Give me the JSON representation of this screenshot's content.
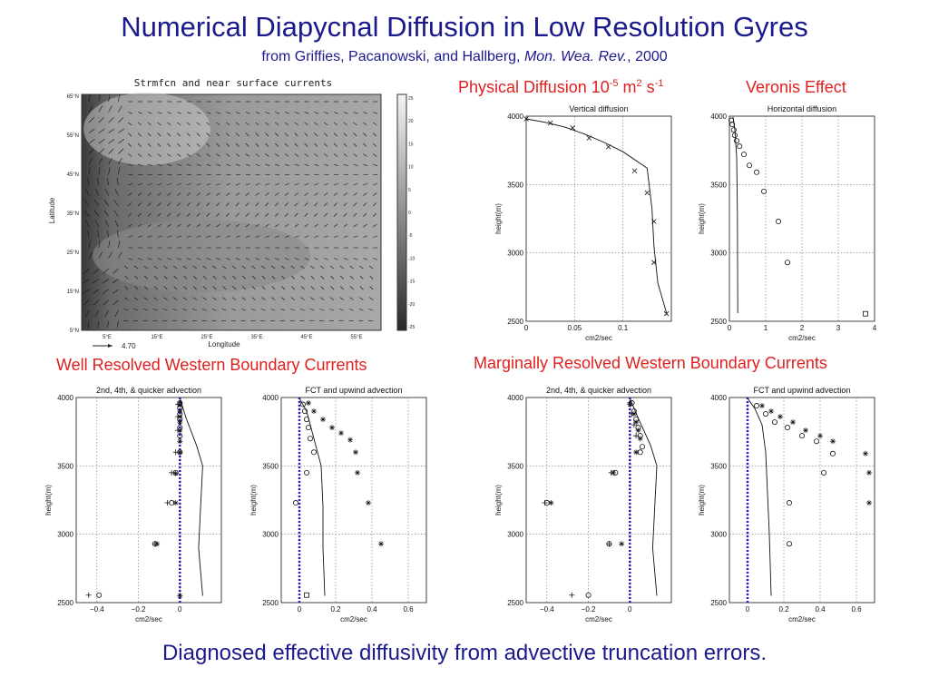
{
  "header": {
    "title": "Numerical Diapycnal Diffusion in Low Resolution Gyres",
    "subtitle_authors": "from Griffies, Pacanowski, and Hallberg, ",
    "subtitle_journal": "Mon. Wea. Rev.",
    "subtitle_year": ", 2000"
  },
  "labels": {
    "physical_diffusion_prefix": "Physical Diffusion 10",
    "physical_diffusion_exp1": "-5",
    "physical_diffusion_mid": " m",
    "physical_diffusion_exp2": "2",
    "physical_diffusion_s": " s",
    "physical_diffusion_exp3": "-1",
    "veronis_effect": "Veronis Effect",
    "well_resolved": "Well Resolved Western Boundary Currents",
    "marginally_resolved": "Marginally Resolved Western Boundary Currents"
  },
  "footer": {
    "text": "Diagnosed effective diffusivity from advective truncation errors."
  },
  "map": {
    "title": "Strmfcn and near surface currents",
    "xlabel": "Longitude",
    "ylabel": "Latitude",
    "lat_ticks": [
      "65°N",
      "55°N",
      "45°N",
      "35°N",
      "25°N",
      "15°N",
      "5°N"
    ],
    "lon_ticks": [
      "5°E",
      "15°E",
      "25°E",
      "35°E",
      "45°E",
      "55°E"
    ],
    "colorbar_ticks": [
      "25",
      "20",
      "15",
      "10",
      "5",
      "0",
      "-5",
      "-10",
      "-15",
      "-20",
      "-25"
    ],
    "reference_vector_label": "4.70"
  },
  "chart_data": [
    {
      "id": "vertical",
      "type": "scatter",
      "title": "Vertical diffusion",
      "xlabel": "cm2/sec",
      "ylabel": "height(m)",
      "xlim": [
        0,
        0.15
      ],
      "ylim": [
        2500,
        4000
      ],
      "xticks": [
        {
          "v": 0,
          "l": "0"
        },
        {
          "v": 0.05,
          "l": "0.05"
        },
        {
          "v": 0.1,
          "l": "0.1"
        }
      ],
      "yticks": [
        2500,
        3000,
        3500,
        4000
      ],
      "line": [
        [
          0,
          3980
        ],
        [
          0.02,
          3955
        ],
        [
          0.04,
          3920
        ],
        [
          0.06,
          3870
        ],
        [
          0.08,
          3810
        ],
        [
          0.1,
          3740
        ],
        [
          0.125,
          3620
        ],
        [
          0.127,
          3500
        ],
        [
          0.13,
          3320
        ],
        [
          0.132,
          3050
        ],
        [
          0.136,
          2780
        ],
        [
          0.145,
          2560
        ]
      ],
      "markers": [
        {
          "sym": "x",
          "pts": [
            [
              0,
              3980
            ],
            [
              0.025,
              3950
            ],
            [
              0.048,
              3915
            ],
            [
              0.065,
              3840
            ],
            [
              0.085,
              3775
            ],
            [
              0.112,
              3600
            ],
            [
              0.125,
              3440
            ],
            [
              0.132,
              3230
            ],
            [
              0.132,
              2930
            ],
            [
              0.145,
              2555
            ]
          ]
        }
      ]
    },
    {
      "id": "horizontal",
      "type": "scatter",
      "title": "Horizontal diffusion",
      "xlabel": "cm2/sec",
      "ylabel": "height(m)",
      "xlim": [
        0,
        4
      ],
      "ylim": [
        2500,
        4000
      ],
      "xticks": [
        {
          "v": 0,
          "l": "0"
        },
        {
          "v": 1,
          "l": "1"
        },
        {
          "v": 2,
          "l": "2"
        },
        {
          "v": 3,
          "l": "3"
        },
        {
          "v": 4,
          "l": "4"
        }
      ],
      "yticks": [
        2500,
        3000,
        3500,
        4000
      ],
      "line": [
        [
          0.1,
          3995
        ],
        [
          0.15,
          3900
        ],
        [
          0.2,
          3700
        ],
        [
          0.22,
          3300
        ],
        [
          0.23,
          2560
        ]
      ],
      "markers": [
        {
          "sym": "o",
          "pts": [
            [
              0.05,
              3970
            ],
            [
              0.08,
              3940
            ],
            [
              0.12,
              3900
            ],
            [
              0.15,
              3860
            ],
            [
              0.2,
              3820
            ],
            [
              0.28,
              3780
            ],
            [
              0.4,
              3720
            ],
            [
              0.55,
              3640
            ],
            [
              0.75,
              3590
            ],
            [
              0.95,
              3450
            ],
            [
              1.35,
              3230
            ],
            [
              1.6,
              2930
            ]
          ]
        },
        {
          "sym": "s",
          "pts": [
            [
              3.75,
              2555
            ]
          ]
        }
      ]
    },
    {
      "id": "well_centered",
      "type": "scatter",
      "title": "2nd, 4th, & quicker advection",
      "xlabel": "cm2/sec",
      "ylabel": "height(m)",
      "xlim": [
        -0.5,
        0.2
      ],
      "ylim": [
        2500,
        4000
      ],
      "xticks": [
        {
          "v": -0.4,
          "l": "−0.4"
        },
        {
          "v": -0.2,
          "l": "−0.2"
        },
        {
          "v": 0,
          "l": "0"
        }
      ],
      "yticks": [
        2500,
        3000,
        3500,
        4000
      ],
      "vline": 0,
      "line": [
        [
          0,
          3995
        ],
        [
          0.03,
          3850
        ],
        [
          0.08,
          3650
        ],
        [
          0.11,
          3500
        ],
        [
          0.1,
          3200
        ],
        [
          0.09,
          2900
        ],
        [
          0.11,
          2550
        ]
      ],
      "markers": [
        {
          "sym": "o",
          "pts": [
            [
              0,
              3960
            ],
            [
              0,
              3920
            ],
            [
              0,
              3880
            ],
            [
              0,
              3840
            ],
            [
              0,
              3780
            ],
            [
              0,
              3720
            ],
            [
              0,
              3600
            ],
            [
              -0.02,
              3450
            ],
            [
              -0.04,
              3230
            ],
            [
              -0.12,
              2930
            ],
            [
              -0.39,
              2555
            ]
          ]
        },
        {
          "sym": "*",
          "pts": [
            [
              0,
              3950
            ],
            [
              0,
              3900
            ],
            [
              0,
              3860
            ],
            [
              0,
              3820
            ],
            [
              0,
              3760
            ],
            [
              0,
              3680
            ],
            [
              0,
              3600
            ],
            [
              -0.02,
              3445
            ],
            [
              -0.02,
              3230
            ],
            [
              -0.11,
              2930
            ],
            [
              0,
              2550
            ]
          ]
        },
        {
          "sym": "+",
          "pts": [
            [
              -0.01,
              3950
            ],
            [
              -0.01,
              3860
            ],
            [
              -0.01,
              3760
            ],
            [
              -0.02,
              3600
            ],
            [
              -0.04,
              3450
            ],
            [
              -0.06,
              3230
            ],
            [
              -0.12,
              2930
            ],
            [
              -0.44,
              2555
            ]
          ]
        }
      ]
    },
    {
      "id": "well_fct",
      "type": "scatter",
      "title": "FCT and upwind advection",
      "xlabel": "cm2/sec",
      "ylabel": "height(m)",
      "xlim": [
        -0.1,
        0.7
      ],
      "ylim": [
        2500,
        4000
      ],
      "xticks": [
        {
          "v": 0,
          "l": "0"
        },
        {
          "v": 0.2,
          "l": "0.2"
        },
        {
          "v": 0.4,
          "l": "0.4"
        },
        {
          "v": 0.6,
          "l": "0.6"
        }
      ],
      "yticks": [
        2500,
        3000,
        3500,
        4000
      ],
      "vline": 0,
      "line": [
        [
          0,
          3995
        ],
        [
          0.04,
          3900
        ],
        [
          0.08,
          3700
        ],
        [
          0.12,
          3500
        ],
        [
          0.13,
          3200
        ],
        [
          0.13,
          2900
        ],
        [
          0.14,
          2550
        ]
      ],
      "markers": [
        {
          "sym": "o",
          "pts": [
            [
              0.02,
              3950
            ],
            [
              0.03,
              3900
            ],
            [
              0.04,
              3840
            ],
            [
              0.05,
              3780
            ],
            [
              0.06,
              3700
            ],
            [
              0.08,
              3600
            ],
            [
              0.04,
              3450
            ],
            [
              -0.02,
              3230
            ]
          ]
        },
        {
          "sym": "*",
          "pts": [
            [
              0.05,
              3960
            ],
            [
              0.08,
              3900
            ],
            [
              0.13,
              3840
            ],
            [
              0.18,
              3780
            ],
            [
              0.23,
              3740
            ],
            [
              0.28,
              3690
            ],
            [
              0.31,
              3600
            ],
            [
              0.32,
              3450
            ],
            [
              0.38,
              3230
            ],
            [
              0.45,
              2930
            ]
          ]
        },
        {
          "sym": "s",
          "pts": [
            [
              0.04,
              2555
            ]
          ]
        }
      ]
    },
    {
      "id": "marg_centered",
      "type": "scatter",
      "title": "2nd, 4th, & quicker advection",
      "xlabel": "cm2/sec",
      "ylabel": "height(m)",
      "xlim": [
        -0.5,
        0.2
      ],
      "ylim": [
        2500,
        4000
      ],
      "xticks": [
        {
          "v": -0.4,
          "l": "−0.4"
        },
        {
          "v": -0.2,
          "l": "−0.2"
        },
        {
          "v": 0,
          "l": "0"
        }
      ],
      "yticks": [
        2500,
        3000,
        3500,
        4000
      ],
      "vline": 0,
      "line": [
        [
          0,
          3995
        ],
        [
          0.04,
          3850
        ],
        [
          0.1,
          3650
        ],
        [
          0.13,
          3500
        ],
        [
          0.12,
          3200
        ],
        [
          0.11,
          2900
        ],
        [
          0.13,
          2550
        ]
      ],
      "markers": [
        {
          "sym": "o",
          "pts": [
            [
              0.01,
              3960
            ],
            [
              0.02,
              3900
            ],
            [
              0.03,
              3840
            ],
            [
              0.04,
              3780
            ],
            [
              0.05,
              3720
            ],
            [
              0.06,
              3640
            ],
            [
              0.05,
              3600
            ],
            [
              -0.07,
              3450
            ],
            [
              -0.4,
              3230
            ],
            [
              -0.1,
              2930
            ],
            [
              -0.2,
              2555
            ]
          ]
        },
        {
          "sym": "*",
          "pts": [
            [
              0,
              3950
            ],
            [
              0.02,
              3880
            ],
            [
              0.03,
              3820
            ],
            [
              0.04,
              3760
            ],
            [
              0.05,
              3700
            ],
            [
              0.03,
              3600
            ],
            [
              -0.08,
              3450
            ],
            [
              -0.38,
              3230
            ],
            [
              -0.04,
              2930
            ]
          ]
        },
        {
          "sym": "+",
          "pts": [
            [
              0,
              3960
            ],
            [
              0.01,
              3880
            ],
            [
              0.02,
              3800
            ],
            [
              0.03,
              3720
            ],
            [
              -0.09,
              3450
            ],
            [
              -0.41,
              3230
            ],
            [
              -0.1,
              2930
            ],
            [
              -0.28,
              2555
            ]
          ]
        }
      ]
    },
    {
      "id": "marg_fct",
      "type": "scatter",
      "title": "FCT and upwind advection",
      "xlabel": "cm2/sec",
      "ylabel": "height(m)",
      "xlim": [
        -0.1,
        0.7
      ],
      "ylim": [
        2500,
        4000
      ],
      "xticks": [
        {
          "v": 0,
          "l": "0"
        },
        {
          "v": 0.2,
          "l": "0.2"
        },
        {
          "v": 0.4,
          "l": "0.4"
        },
        {
          "v": 0.6,
          "l": "0.6"
        }
      ],
      "yticks": [
        2500,
        3000,
        3500,
        4000
      ],
      "vline": 0,
      "line": [
        [
          0,
          3995
        ],
        [
          0.04,
          3920
        ],
        [
          0.08,
          3800
        ],
        [
          0.1,
          3600
        ],
        [
          0.11,
          3300
        ],
        [
          0.12,
          3000
        ],
        [
          0.13,
          2550
        ]
      ],
      "markers": [
        {
          "sym": "o",
          "pts": [
            [
              0.05,
              3940
            ],
            [
              0.1,
              3880
            ],
            [
              0.15,
              3820
            ],
            [
              0.22,
              3780
            ],
            [
              0.3,
              3720
            ],
            [
              0.38,
              3680
            ],
            [
              0.47,
              3590
            ],
            [
              0.42,
              3450
            ],
            [
              0.23,
              3230
            ],
            [
              0.23,
              2930
            ]
          ]
        },
        {
          "sym": "*",
          "pts": [
            [
              0.08,
              3940
            ],
            [
              0.13,
              3900
            ],
            [
              0.18,
              3860
            ],
            [
              0.25,
              3820
            ],
            [
              0.32,
              3760
            ],
            [
              0.4,
              3720
            ],
            [
              0.47,
              3680
            ],
            [
              0.65,
              3590
            ],
            [
              0.67,
              3450
            ],
            [
              0.67,
              3230
            ]
          ]
        }
      ]
    }
  ]
}
